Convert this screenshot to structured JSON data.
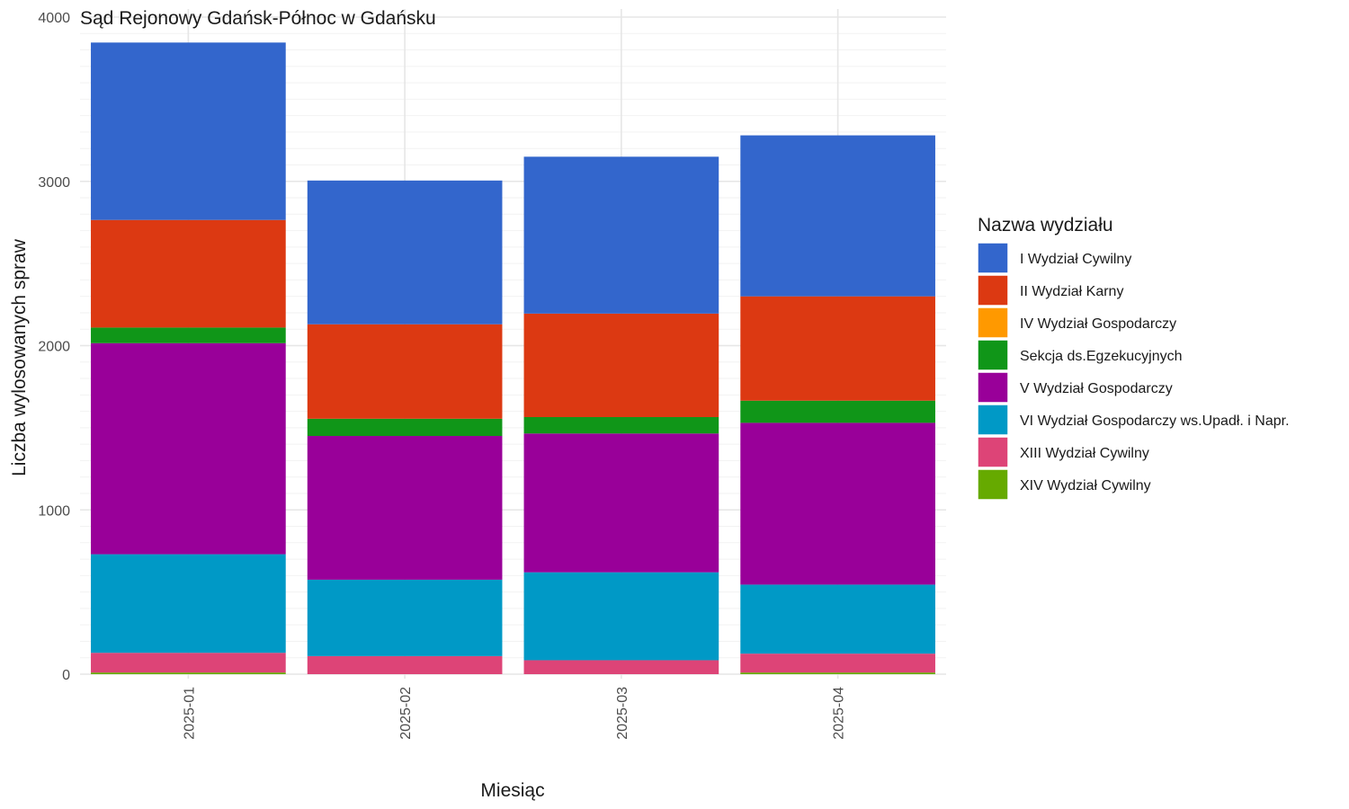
{
  "chart_data": {
    "type": "bar",
    "stacked": true,
    "title": "Sąd Rejonowy Gdańsk-Północ w Gdańsku",
    "xlabel": "Miesiąc",
    "ylabel": "Liczba wylosowanych spraw",
    "ylim": [
      0,
      4000
    ],
    "y_ticks": [
      "0",
      "1000",
      "2000",
      "3000",
      "4000"
    ],
    "y_tick_values": [
      0,
      1000,
      2000,
      3000,
      4000
    ],
    "categories": [
      "2025-01",
      "2025-02",
      "2025-03",
      "2025-04"
    ],
    "grid": true,
    "legend_title": "Nazwa wydziału",
    "legend_position": "right",
    "series": [
      {
        "name": "XIV Wydział Cywilny",
        "color": "#66aa00",
        "values": [
          10,
          0,
          0,
          10
        ]
      },
      {
        "name": "XIII Wydział Cywilny",
        "color": "#dd4477",
        "values": [
          120,
          110,
          85,
          115
        ]
      },
      {
        "name": "VI Wydział Gospodarczy ws.Upadł. i Napr.",
        "color": "#0099c6",
        "values": [
          600,
          465,
          535,
          420
        ]
      },
      {
        "name": "V Wydział Gospodarczy",
        "color": "#990099",
        "values": [
          1285,
          875,
          845,
          985
        ]
      },
      {
        "name": "Sekcja ds.Egzekucyjnych",
        "color": "#109618",
        "values": [
          95,
          105,
          100,
          135
        ]
      },
      {
        "name": "IV Wydział Gospodarczy",
        "color": "#ff9900",
        "values": [
          0,
          0,
          0,
          0
        ]
      },
      {
        "name": "II Wydział Karny",
        "color": "#dc3912",
        "values": [
          655,
          575,
          630,
          635
        ]
      },
      {
        "name": "I Wydział Cywilny",
        "color": "#3366cc",
        "values": [
          1080,
          875,
          955,
          980
        ]
      }
    ],
    "legend_order": [
      "I Wydział Cywilny",
      "II Wydział Karny",
      "IV Wydział Gospodarczy",
      "Sekcja ds.Egzekucyjnych",
      "V Wydział Gospodarczy",
      "VI Wydział Gospodarczy ws.Upadł. i Napr.",
      "XIII Wydział Cywilny",
      "XIV Wydział Cywilny"
    ]
  }
}
